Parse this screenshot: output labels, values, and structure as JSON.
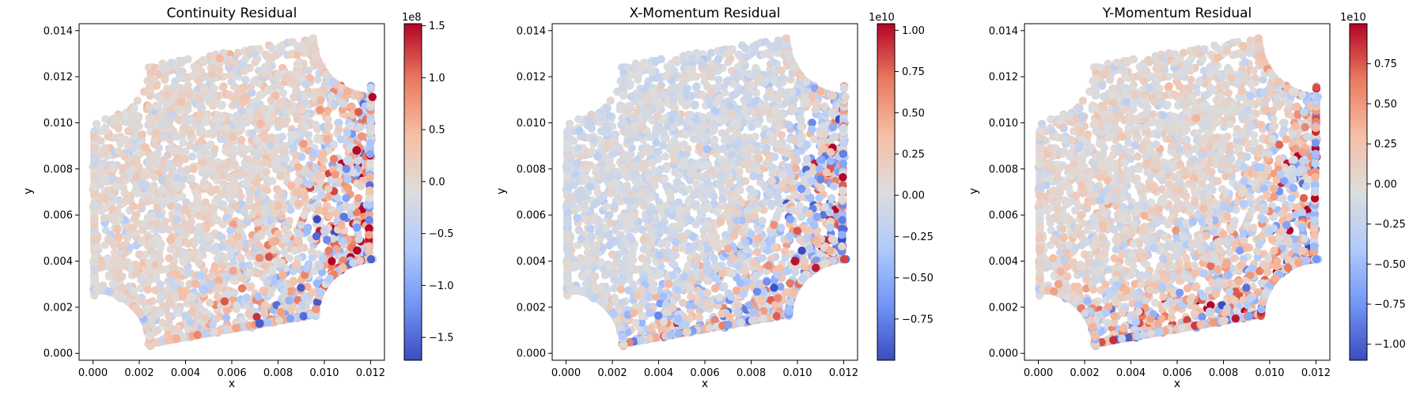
{
  "colormap": {
    "name": "coolwarm",
    "stops": [
      "#3b4cc0",
      "#7396f5",
      "#b0cbfc",
      "#dddddd",
      "#f6bfa6",
      "#ea7b60",
      "#b40426"
    ]
  },
  "chart_data": [
    {
      "type": "scatter",
      "title": "Continuity Residual",
      "xlabel": "x",
      "ylabel": "y",
      "xlim": [
        -0.0006,
        0.0126
      ],
      "ylim": [
        -0.0003,
        0.0143
      ],
      "xticks": [
        "0.000",
        "0.002",
        "0.004",
        "0.006",
        "0.008",
        "0.010",
        "0.012"
      ],
      "yticks": [
        "0.000",
        "0.002",
        "0.004",
        "0.006",
        "0.008",
        "0.010",
        "0.012",
        "0.014"
      ],
      "colorbar": {
        "min": -1.72,
        "max": 1.52,
        "ticks": [
          "1.5",
          "1.0",
          "0.5",
          "0.0",
          "−0.5",
          "−1.0",
          "−1.5"
        ],
        "offset": "1e8"
      },
      "points_note": "dense scatter of residual values over the domain",
      "highlight_points": [
        {
          "x": 0.0114,
          "y": 0.0088,
          "value": 1.5
        },
        {
          "x": 0.0072,
          "y": 0.0013,
          "value": -1.6
        }
      ]
    },
    {
      "type": "scatter",
      "title": "X-Momentum Residual",
      "xlabel": "x",
      "ylabel": "y",
      "xlim": [
        -0.0006,
        0.0126
      ],
      "ylim": [
        -0.0003,
        0.0143
      ],
      "xticks": [
        "0.000",
        "0.002",
        "0.004",
        "0.006",
        "0.008",
        "0.010",
        "0.012"
      ],
      "yticks": [
        "0.000",
        "0.002",
        "0.004",
        "0.006",
        "0.008",
        "0.010",
        "0.012",
        "0.014"
      ],
      "colorbar": {
        "min": -1.0,
        "max": 1.04,
        "ticks": [
          "1.00",
          "0.75",
          "0.50",
          "0.25",
          "0.00",
          "−0.25",
          "−0.50",
          "−0.75"
        ],
        "offset": "1e10"
      },
      "highlight_points": [
        {
          "x": 0.0099,
          "y": 0.004,
          "value": 1.0
        }
      ]
    },
    {
      "type": "scatter",
      "title": "Y-Momentum Residual",
      "xlabel": "x",
      "ylabel": "y",
      "xlim": [
        -0.0006,
        0.0126
      ],
      "ylim": [
        -0.0003,
        0.0143
      ],
      "xticks": [
        "0.000",
        "0.002",
        "0.004",
        "0.006",
        "0.008",
        "0.010",
        "0.012"
      ],
      "yticks": [
        "0.000",
        "0.002",
        "0.004",
        "0.006",
        "0.008",
        "0.010",
        "0.012",
        "0.014"
      ],
      "colorbar": {
        "min": -1.1,
        "max": 1.0,
        "ticks": [
          "0.75",
          "0.50",
          "0.25",
          "0.00",
          "−0.25",
          "−0.50",
          "−0.75",
          "−1.00"
        ],
        "offset": "1e10"
      },
      "highlight_points": []
    }
  ]
}
